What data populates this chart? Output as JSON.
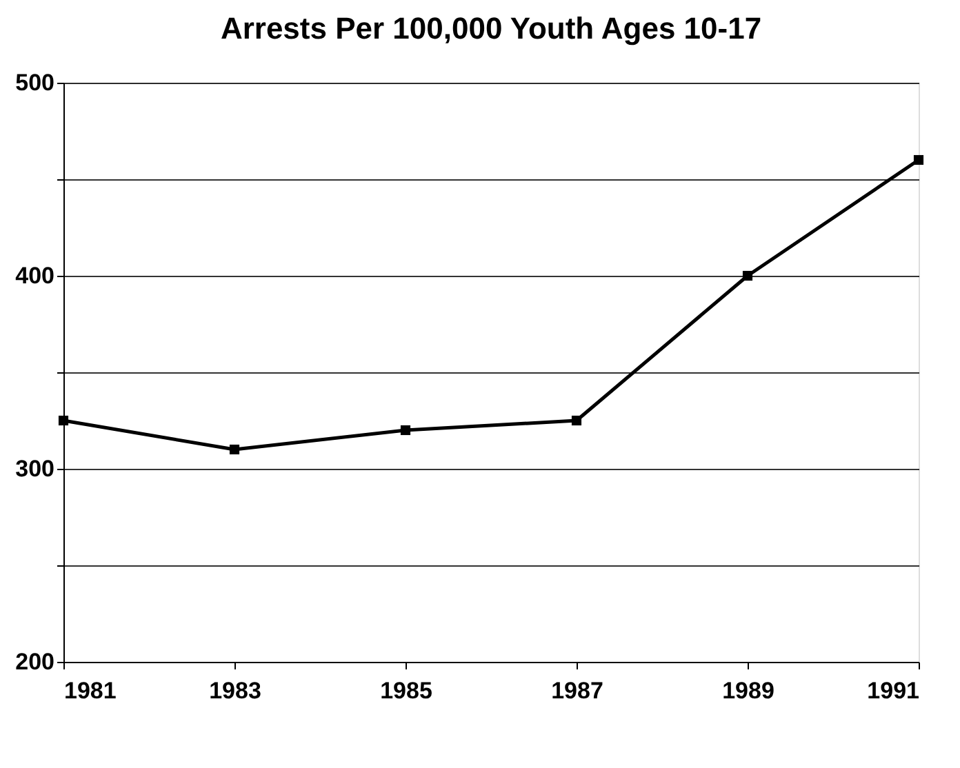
{
  "chart_data": {
    "type": "line",
    "title": "Arrests Per 100,000 Youth Ages 10-17",
    "x": [
      1981,
      1983,
      1985,
      1987,
      1989,
      1991
    ],
    "series": [
      {
        "color": "#000000",
        "values": [
          325,
          310,
          320,
          325,
          400,
          460
        ]
      }
    ],
    "xlim": [
      1981,
      1991
    ],
    "xticks": [
      1981,
      1983,
      1985,
      1987,
      1989,
      1991
    ],
    "ylim": [
      200,
      500
    ],
    "yticks": [
      200,
      {
        "value": 250,
        "label": null
      },
      300,
      {
        "value": 350,
        "label": null
      },
      400,
      {
        "value": 450,
        "label": null
      },
      500
    ],
    "grid": "y",
    "marker": "square",
    "line_style": "solid"
  }
}
